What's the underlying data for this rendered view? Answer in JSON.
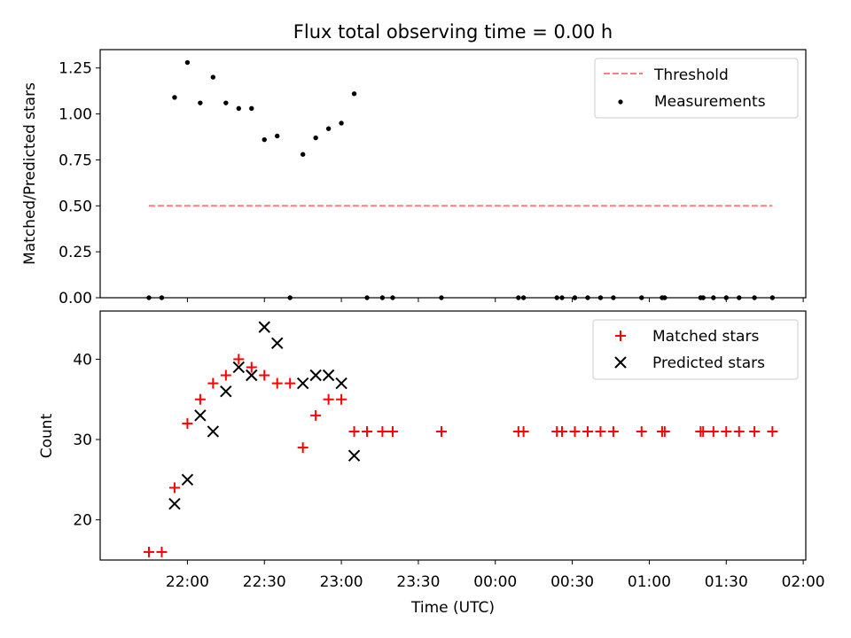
{
  "title": "Flux total observing time = 0.00 h",
  "colors": {
    "threshold": "#ff7f7f",
    "measurements": "#000000",
    "matched": "#ff0000",
    "predicted": "#000000"
  },
  "chart_data": [
    {
      "type": "scatter",
      "title": "Flux total observing time = 0.00 h",
      "xlabel": "",
      "ylabel": "Matched/Predicted stars",
      "xlim": [
        "21:26",
        "02:01"
      ],
      "ylim": [
        0,
        1.35
      ],
      "yticks": [
        0.0,
        0.25,
        0.5,
        0.75,
        1.0,
        1.25
      ],
      "ytick_labels": [
        "0.00",
        "0.25",
        "0.50",
        "0.75",
        "1.00",
        "1.25"
      ],
      "legend": {
        "placement": "top-right",
        "entries": [
          "Threshold",
          "Measurements"
        ]
      },
      "threshold": {
        "name": "Threshold",
        "value": 0.5,
        "x_start": "21:45",
        "x_end": "01:48"
      },
      "series": [
        {
          "name": "Measurements",
          "points": [
            [
              "21:45",
              0.0
            ],
            [
              "21:50",
              0.0
            ],
            [
              "21:55",
              1.09
            ],
            [
              "22:00",
              1.28
            ],
            [
              "22:05",
              1.06
            ],
            [
              "22:10",
              1.2
            ],
            [
              "22:15",
              1.06
            ],
            [
              "22:20",
              1.03
            ],
            [
              "22:25",
              1.03
            ],
            [
              "22:30",
              0.86
            ],
            [
              "22:35",
              0.88
            ],
            [
              "22:40",
              0.0
            ],
            [
              "22:45",
              0.78
            ],
            [
              "22:50",
              0.87
            ],
            [
              "22:55",
              0.92
            ],
            [
              "23:00",
              0.95
            ],
            [
              "23:05",
              1.11
            ],
            [
              "23:10",
              0.0
            ],
            [
              "23:16",
              0.0
            ],
            [
              "23:20",
              0.0
            ],
            [
              "23:39",
              0.0
            ],
            [
              "00:09",
              0.0
            ],
            [
              "00:11",
              0.0
            ],
            [
              "00:24",
              0.0
            ],
            [
              "00:26",
              0.0
            ],
            [
              "00:31",
              0.0
            ],
            [
              "00:36",
              0.0
            ],
            [
              "00:41",
              0.0
            ],
            [
              "00:46",
              0.0
            ],
            [
              "00:57",
              0.0
            ],
            [
              "01:05",
              0.0
            ],
            [
              "01:06",
              0.0
            ],
            [
              "01:20",
              0.0
            ],
            [
              "01:21",
              0.0
            ],
            [
              "01:25",
              0.0
            ],
            [
              "01:30",
              0.0
            ],
            [
              "01:35",
              0.0
            ],
            [
              "01:41",
              0.0
            ],
            [
              "01:48",
              0.0
            ]
          ]
        }
      ]
    },
    {
      "type": "scatter",
      "xlabel": "Time (UTC)",
      "ylabel": "Count",
      "xlim": [
        "21:26",
        "02:01"
      ],
      "ylim": [
        15,
        46
      ],
      "yticks": [
        20,
        30,
        40
      ],
      "xticks": [
        "22:00",
        "22:30",
        "23:00",
        "23:30",
        "00:00",
        "00:30",
        "01:00",
        "01:30",
        "02:00"
      ],
      "legend": {
        "placement": "top-right",
        "entries": [
          "Matched stars",
          "Predicted stars"
        ]
      },
      "series": [
        {
          "name": "Matched stars",
          "marker": "plus",
          "points": [
            [
              "21:45",
              16
            ],
            [
              "21:50",
              16
            ],
            [
              "21:55",
              24
            ],
            [
              "22:00",
              32
            ],
            [
              "22:05",
              35
            ],
            [
              "22:10",
              37
            ],
            [
              "22:15",
              38
            ],
            [
              "22:20",
              40
            ],
            [
              "22:25",
              39
            ],
            [
              "22:30",
              38
            ],
            [
              "22:35",
              37
            ],
            [
              "22:40",
              37
            ],
            [
              "22:45",
              29
            ],
            [
              "22:50",
              33
            ],
            [
              "22:55",
              35
            ],
            [
              "23:00",
              35
            ],
            [
              "23:05",
              31
            ],
            [
              "23:10",
              31
            ],
            [
              "23:16",
              31
            ],
            [
              "23:20",
              31
            ],
            [
              "23:39",
              31
            ],
            [
              "00:09",
              31
            ],
            [
              "00:11",
              31
            ],
            [
              "00:24",
              31
            ],
            [
              "00:26",
              31
            ],
            [
              "00:31",
              31
            ],
            [
              "00:36",
              31
            ],
            [
              "00:41",
              31
            ],
            [
              "00:46",
              31
            ],
            [
              "00:57",
              31
            ],
            [
              "01:05",
              31
            ],
            [
              "01:06",
              31
            ],
            [
              "01:20",
              31
            ],
            [
              "01:21",
              31
            ],
            [
              "01:25",
              31
            ],
            [
              "01:30",
              31
            ],
            [
              "01:35",
              31
            ],
            [
              "01:41",
              31
            ],
            [
              "01:48",
              31
            ]
          ]
        },
        {
          "name": "Predicted stars",
          "marker": "x",
          "points": [
            [
              "21:55",
              22
            ],
            [
              "22:00",
              25
            ],
            [
              "22:05",
              33
            ],
            [
              "22:10",
              31
            ],
            [
              "22:15",
              36
            ],
            [
              "22:20",
              39
            ],
            [
              "22:25",
              38
            ],
            [
              "22:30",
              44
            ],
            [
              "22:35",
              42
            ],
            [
              "22:45",
              37
            ],
            [
              "22:50",
              38
            ],
            [
              "22:55",
              38
            ],
            [
              "23:00",
              37
            ],
            [
              "23:05",
              28
            ]
          ]
        }
      ]
    }
  ]
}
